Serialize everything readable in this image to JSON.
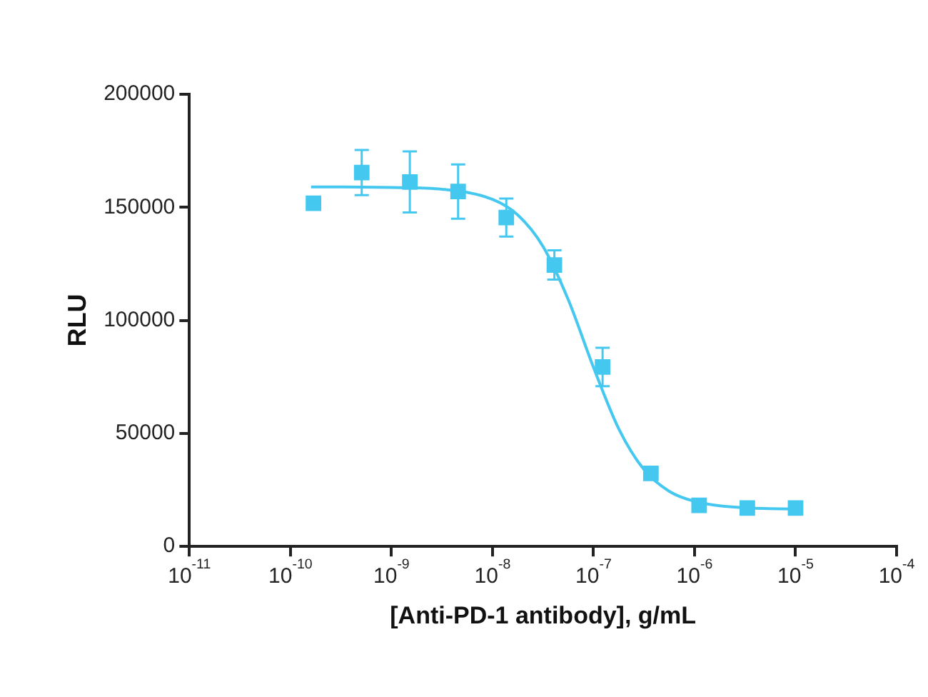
{
  "chart_data": {
    "type": "scatter",
    "xlabel": "[Anti-PD-1 antibody], g/mL",
    "ylabel": "RLU",
    "log": "x",
    "grid": false,
    "legend": false,
    "marker": "square",
    "xlim": [
      1e-11,
      0.0001
    ],
    "xticks": [
      {
        "value": 1e-11,
        "label": "10$^{-11}$"
      },
      {
        "value": 1e-10,
        "label": "10$^{-10}$"
      },
      {
        "value": 1e-09,
        "label": "10$^{-9}$"
      },
      {
        "value": 1e-08,
        "label": "10$^{-8}$"
      },
      {
        "value": 1e-07,
        "label": "10$^{-7}$"
      },
      {
        "value": 1e-06,
        "label": "10$^{-6}$"
      },
      {
        "value": 1e-05,
        "label": "10$^{-5}$"
      },
      {
        "value": 0.0001,
        "label": "10$^{-4}$"
      }
    ],
    "ylim": [
      0,
      200000
    ],
    "yticks": [
      0,
      50000,
      100000,
      150000,
      200000
    ],
    "series": [
      {
        "type": "scatter",
        "color": "#45c8f0",
        "x": [
          1.69e-10,
          5.08e-10,
          1.52e-09,
          4.57e-09,
          1.37e-08,
          4.1e-08,
          1.23e-07,
          3.7e-07,
          1.11e-06,
          3.33e-06,
          1e-05
        ],
        "values": [
          151800,
          165400,
          161200,
          157000,
          145500,
          124500,
          79400,
          32300,
          18200,
          17000,
          17000
        ],
        "errors": [
          null,
          10000,
          13500,
          12000,
          8400,
          6500,
          8500,
          null,
          null,
          null,
          null
        ]
      },
      {
        "type": "line",
        "color": "#45c8f0",
        "marker": "none",
        "x": [
          1.6e-10,
          3.16e-10,
          1e-09,
          3.16e-09,
          1e-08,
          1.78e-08,
          3.16e-08,
          5.62e-08,
          1e-07,
          1.78e-07,
          3.16e-07,
          5.62e-07,
          1e-06,
          3.16e-06,
          1e-05
        ],
        "values": [
          159000,
          159000,
          158800,
          158000,
          153500,
          146600,
          132700,
          109200,
          79200,
          52000,
          34000,
          24400,
          20000,
          17100,
          16600
        ]
      }
    ]
  }
}
